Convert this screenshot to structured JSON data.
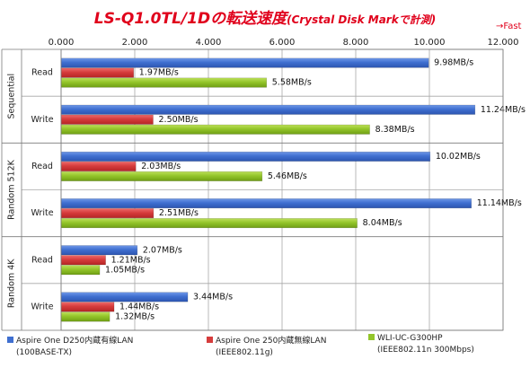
{
  "title": "LS-Q1.0TL/1Dの転送速度",
  "subtitle": "(Crystal Disk Markで計測)",
  "fast_label": "→Fast",
  "colors": {
    "blue": "#3f6fd0",
    "red": "#d63c3c",
    "green": "#93c52a",
    "grid": "#a8a8a8",
    "frame": "#7a7a7a",
    "title": "#e0001b"
  },
  "chart_data": {
    "type": "bar",
    "orientation": "horizontal",
    "xlim": [
      0,
      12
    ],
    "xticks": [
      "0.000",
      "2.000",
      "4.000",
      "6.000",
      "8.000",
      "10.000",
      "12.000"
    ],
    "grid": true,
    "legend_position": "bottom",
    "groups": [
      {
        "name": "Sequential",
        "rows": [
          "Read",
          "Write"
        ]
      },
      {
        "name": "Random 512K",
        "rows": [
          "Read",
          "Write"
        ]
      },
      {
        "name": "Random 4K",
        "rows": [
          "Read",
          "Write"
        ]
      }
    ],
    "series": [
      {
        "name": "Aspire One D250内蔵有線LAN",
        "note": "(100BASE-TX)",
        "color": "blue",
        "values": [
          9.98,
          11.24,
          10.02,
          11.14,
          2.07,
          3.44
        ],
        "labels": [
          "9.98MB/s",
          "11.24MB/s",
          "10.02MB/s",
          "11.14MB/s",
          "2.07MB/s",
          "3.44MB/s"
        ]
      },
      {
        "name": "Aspire One 250内蔵無線LAN",
        "note": "(IEEE802.11g)",
        "color": "red",
        "values": [
          1.97,
          2.5,
          2.03,
          2.51,
          1.21,
          1.44
        ],
        "labels": [
          "1.97MB/s",
          "2.50MB/s",
          "2.03MB/s",
          "2.51MB/s",
          "1.21MB/s",
          "1.44MB/s"
        ]
      },
      {
        "name": "WLI-UC-G300HP",
        "note": "(IEEE802.11n 300Mbps)",
        "color": "green",
        "values": [
          5.58,
          8.38,
          5.46,
          8.04,
          1.05,
          1.32
        ],
        "labels": [
          "5.58MB/s",
          "8.38MB/s",
          "5.46MB/s",
          "8.04MB/s",
          "1.05MB/s",
          "1.32MB/s"
        ]
      }
    ]
  }
}
